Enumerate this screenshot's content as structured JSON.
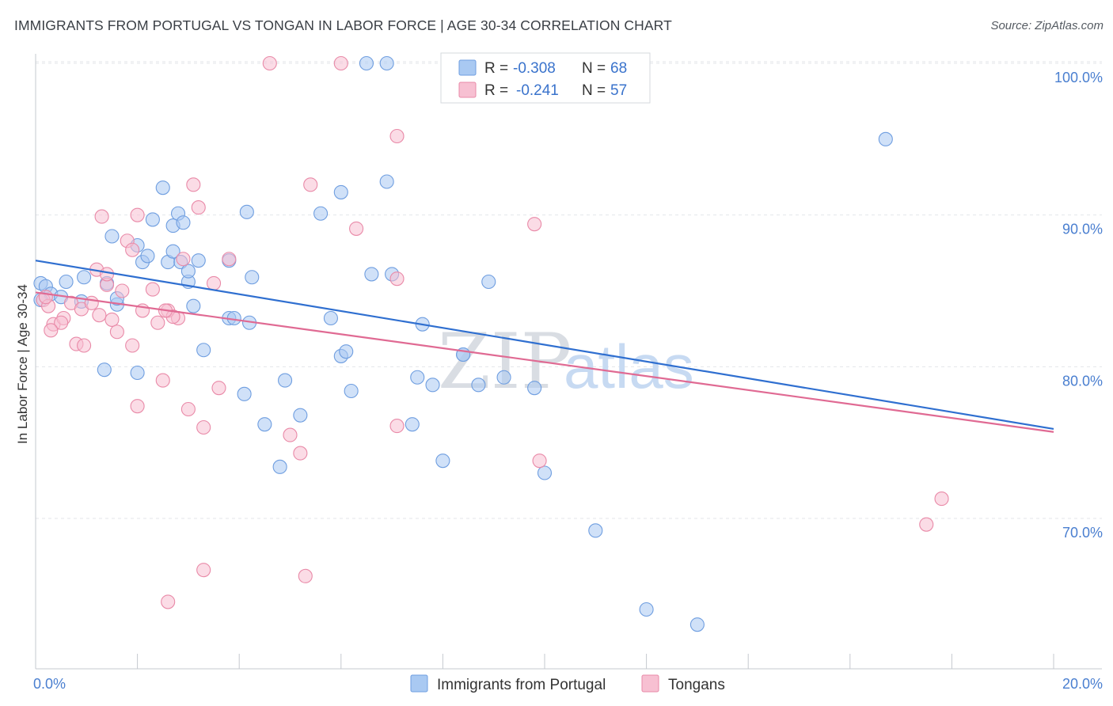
{
  "title": "IMMIGRANTS FROM PORTUGAL VS TONGAN IN LABOR FORCE | AGE 30-34 CORRELATION CHART",
  "source": "Source: ZipAtlas.com",
  "watermark": {
    "zip": "ZIP",
    "atlas": "atlas"
  },
  "legend": {
    "r_label": "R =",
    "n_label": "N =",
    "rows": [
      {
        "r": "-0.308",
        "n": "68",
        "color": "#a9c9f2",
        "stroke": "#6f9ee0"
      },
      {
        "r": "-0.241",
        "n": "57",
        "color": "#f7c0d2",
        "stroke": "#e98aa8"
      }
    ]
  },
  "chart_data": {
    "type": "scatter",
    "title": "IMMIGRANTS FROM PORTUGAL VS TONGAN IN LABOR FORCE | AGE 30-34 CORRELATION CHART",
    "xlabel": "",
    "ylabel": "In Labor Force | Age 30-34",
    "xlim": [
      0,
      20
    ],
    "ylim": [
      61.5,
      102
    ],
    "x_tick_labels": [
      "0.0%",
      "20.0%"
    ],
    "y_ticks": [
      70,
      80,
      90,
      100
    ],
    "y_tick_labels": [
      "70.0%",
      "80.0%",
      "90.0%",
      "100.0%"
    ],
    "grid": true,
    "series": [
      {
        "name": "Immigrants from Portugal",
        "color": "#a9c9f2",
        "stroke": "#6f9ee0",
        "line_color": "#2f6fd0",
        "trend": {
          "x": [
            0,
            20
          ],
          "y": [
            87.0,
            75.9
          ]
        },
        "points": [
          [
            0.1,
            85.5
          ],
          [
            0.2,
            85.3
          ],
          [
            0.3,
            84.8
          ],
          [
            0.6,
            85.6
          ],
          [
            0.95,
            85.9
          ],
          [
            1.4,
            85.5
          ],
          [
            0.1,
            84.4
          ],
          [
            0.5,
            84.6
          ],
          [
            0.9,
            84.3
          ],
          [
            1.5,
            88.6
          ],
          [
            1.6,
            84.1
          ],
          [
            1.6,
            84.5
          ],
          [
            2.0,
            88.0
          ],
          [
            2.1,
            86.9
          ],
          [
            2.2,
            87.3
          ],
          [
            2.3,
            89.7
          ],
          [
            2.5,
            91.8
          ],
          [
            2.7,
            89.3
          ],
          [
            2.8,
            90.1
          ],
          [
            2.9,
            89.5
          ],
          [
            2.6,
            86.9
          ],
          [
            2.7,
            87.6
          ],
          [
            3.0,
            85.6
          ],
          [
            3.1,
            84.0
          ],
          [
            3.2,
            87.0
          ],
          [
            3.3,
            81.1
          ],
          [
            3.8,
            83.2
          ],
          [
            3.9,
            83.2
          ],
          [
            4.1,
            78.2
          ],
          [
            4.5,
            76.2
          ],
          [
            4.8,
            73.4
          ],
          [
            4.9,
            79.1
          ],
          [
            5.2,
            76.8
          ],
          [
            5.6,
            90.1
          ],
          [
            5.8,
            83.2
          ],
          [
            6.0,
            91.5
          ],
          [
            6.0,
            80.7
          ],
          [
            6.1,
            81.0
          ],
          [
            6.2,
            78.4
          ],
          [
            6.6,
            86.1
          ],
          [
            6.9,
            92.2
          ],
          [
            7.0,
            86.1
          ],
          [
            7.5,
            79.3
          ],
          [
            7.4,
            76.2
          ],
          [
            8.0,
            73.8
          ],
          [
            7.6,
            82.8
          ],
          [
            8.4,
            80.8
          ],
          [
            8.9,
            85.6
          ],
          [
            9.2,
            79.3
          ],
          [
            9.8,
            78.6
          ],
          [
            10.0,
            73.0
          ],
          [
            11.0,
            69.2
          ],
          [
            12.0,
            64.0
          ],
          [
            13.0,
            63.0
          ],
          [
            6.5,
            100.0
          ],
          [
            6.9,
            100.0
          ],
          [
            1.35,
            79.8
          ],
          [
            2.0,
            79.6
          ],
          [
            2.85,
            86.9
          ],
          [
            3.8,
            87.0
          ],
          [
            4.15,
            90.2
          ],
          [
            4.25,
            85.9
          ],
          [
            8.7,
            78.8
          ],
          [
            8.4,
            80.8
          ],
          [
            3.0,
            86.3
          ],
          [
            4.2,
            82.9
          ],
          [
            16.7,
            95.0
          ],
          [
            7.8,
            78.8
          ]
        ]
      },
      {
        "name": "Tongans",
        "color": "#f7c0d2",
        "stroke": "#e98aa8",
        "line_color": "#e06a93",
        "trend": {
          "x": [
            0,
            20
          ],
          "y": [
            84.9,
            75.7
          ]
        },
        "points": [
          [
            0.15,
            84.4
          ],
          [
            0.25,
            84.0
          ],
          [
            0.35,
            82.8
          ],
          [
            0.55,
            83.2
          ],
          [
            0.7,
            84.2
          ],
          [
            0.9,
            83.8
          ],
          [
            1.1,
            84.2
          ],
          [
            1.2,
            86.4
          ],
          [
            1.4,
            85.4
          ],
          [
            1.5,
            83.1
          ],
          [
            1.6,
            82.3
          ],
          [
            1.7,
            85.0
          ],
          [
            1.8,
            88.3
          ],
          [
            1.9,
            87.7
          ],
          [
            2.0,
            90.0
          ],
          [
            2.1,
            83.7
          ],
          [
            2.3,
            85.1
          ],
          [
            2.4,
            82.9
          ],
          [
            2.5,
            79.1
          ],
          [
            2.6,
            83.7
          ],
          [
            2.8,
            83.2
          ],
          [
            2.9,
            87.1
          ],
          [
            3.0,
            77.2
          ],
          [
            3.1,
            92.0
          ],
          [
            3.2,
            90.5
          ],
          [
            3.3,
            76.0
          ],
          [
            3.5,
            85.5
          ],
          [
            3.6,
            78.6
          ],
          [
            3.8,
            87.1
          ],
          [
            1.4,
            86.1
          ],
          [
            1.3,
            89.9
          ],
          [
            0.8,
            81.5
          ],
          [
            0.95,
            81.4
          ],
          [
            1.9,
            81.4
          ],
          [
            2.0,
            77.4
          ],
          [
            2.7,
            83.3
          ],
          [
            2.55,
            83.7
          ],
          [
            1.25,
            83.4
          ],
          [
            0.5,
            82.9
          ],
          [
            0.3,
            82.4
          ],
          [
            0.2,
            84.6
          ],
          [
            5.4,
            92.0
          ],
          [
            6.3,
            89.1
          ],
          [
            7.1,
            85.8
          ],
          [
            7.1,
            76.1
          ],
          [
            5.2,
            74.3
          ],
          [
            5.0,
            75.5
          ],
          [
            3.3,
            66.6
          ],
          [
            5.3,
            66.2
          ],
          [
            2.6,
            64.5
          ],
          [
            4.6,
            100.0
          ],
          [
            7.1,
            95.2
          ],
          [
            9.8,
            89.4
          ],
          [
            9.9,
            73.8
          ],
          [
            17.5,
            69.6
          ],
          [
            17.8,
            71.3
          ],
          [
            6.0,
            100.0
          ]
        ]
      }
    ]
  },
  "bottom_legend": [
    {
      "label": "Immigrants from Portugal",
      "color": "#a9c9f2",
      "stroke": "#6f9ee0"
    },
    {
      "label": "Tongans",
      "color": "#f7c0d2",
      "stroke": "#e98aa8"
    }
  ]
}
